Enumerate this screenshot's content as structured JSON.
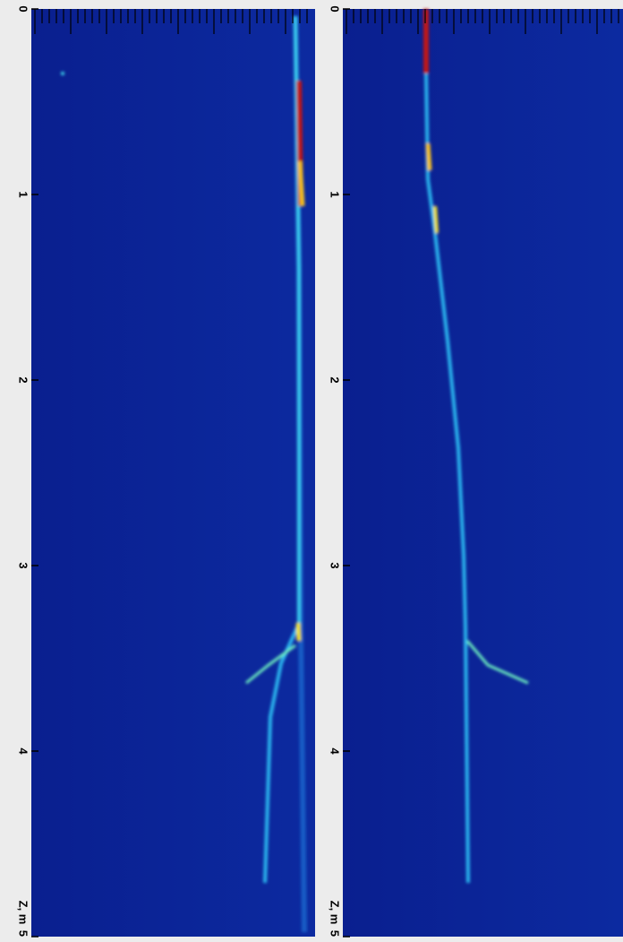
{
  "chart_data": [
    {
      "type": "heatmap",
      "xlabel": "Z, m",
      "xlim": [
        0,
        5
      ],
      "xticks": [
        0,
        1,
        2,
        3,
        4,
        5
      ],
      "orientation": "vertical"
    },
    {
      "type": "heatmap",
      "xlabel": "Z, m",
      "xlim": [
        0,
        5
      ],
      "xticks": [
        0,
        1,
        2,
        3,
        4,
        5
      ],
      "orientation": "vertical"
    }
  ]
}
